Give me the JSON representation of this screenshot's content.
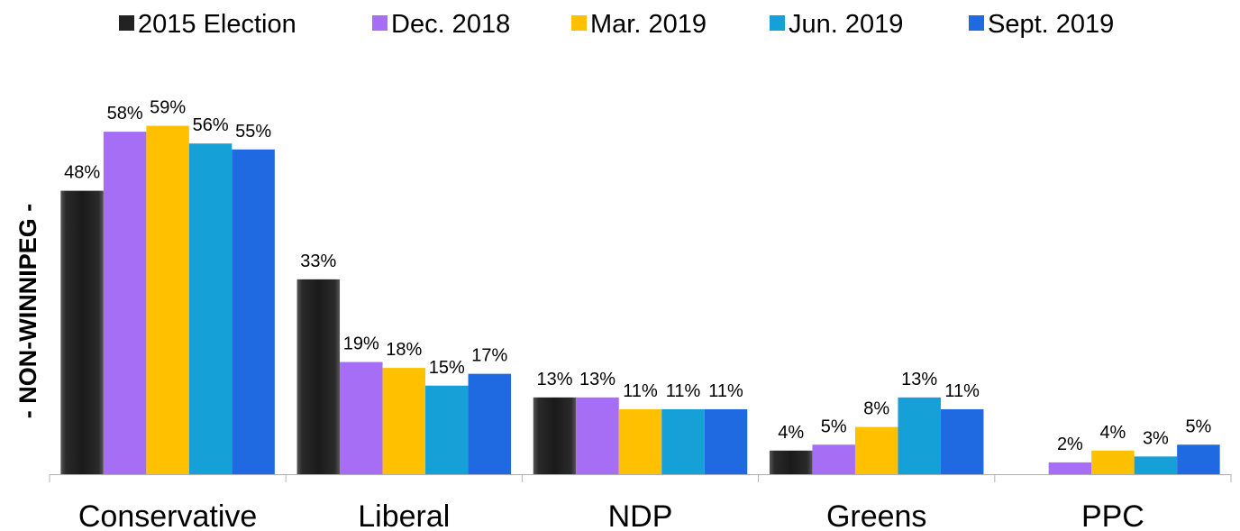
{
  "chart_data": {
    "type": "bar",
    "title": "",
    "xlabel": "",
    "ylabel": "- NON-WINNIPEG -",
    "ylim": [
      0,
      65
    ],
    "grid": false,
    "legend_position": "top",
    "categories": [
      "Conservative",
      "Liberal",
      "NDP",
      "Greens",
      "PPC"
    ],
    "series": [
      {
        "name": "2015 Election",
        "color": "#222222",
        "values": [
          48,
          33,
          13,
          4,
          null
        ],
        "labels": [
          "48%",
          "33%",
          "13%",
          "4%",
          ""
        ]
      },
      {
        "name": "Dec. 2018",
        "color": "#A66EF5",
        "values": [
          58,
          19,
          13,
          5,
          2
        ],
        "labels": [
          "58%",
          "19%",
          "13%",
          "5%",
          "2%"
        ]
      },
      {
        "name": "Mar. 2019",
        "color": "#FFC000",
        "values": [
          59,
          18,
          11,
          8,
          4
        ],
        "labels": [
          "59%",
          "18%",
          "11%",
          "8%",
          "4%"
        ]
      },
      {
        "name": "Jun. 2019",
        "color": "#15A0D8",
        "values": [
          56,
          15,
          11,
          13,
          3
        ],
        "labels": [
          "56%",
          "15%",
          "11%",
          "13%",
          "3%"
        ]
      },
      {
        "name": "Sept. 2019",
        "color": "#1F6AE0",
        "values": [
          55,
          17,
          11,
          11,
          5
        ],
        "labels": [
          "55%",
          "17%",
          "11%",
          "11%",
          "5%"
        ]
      }
    ]
  }
}
